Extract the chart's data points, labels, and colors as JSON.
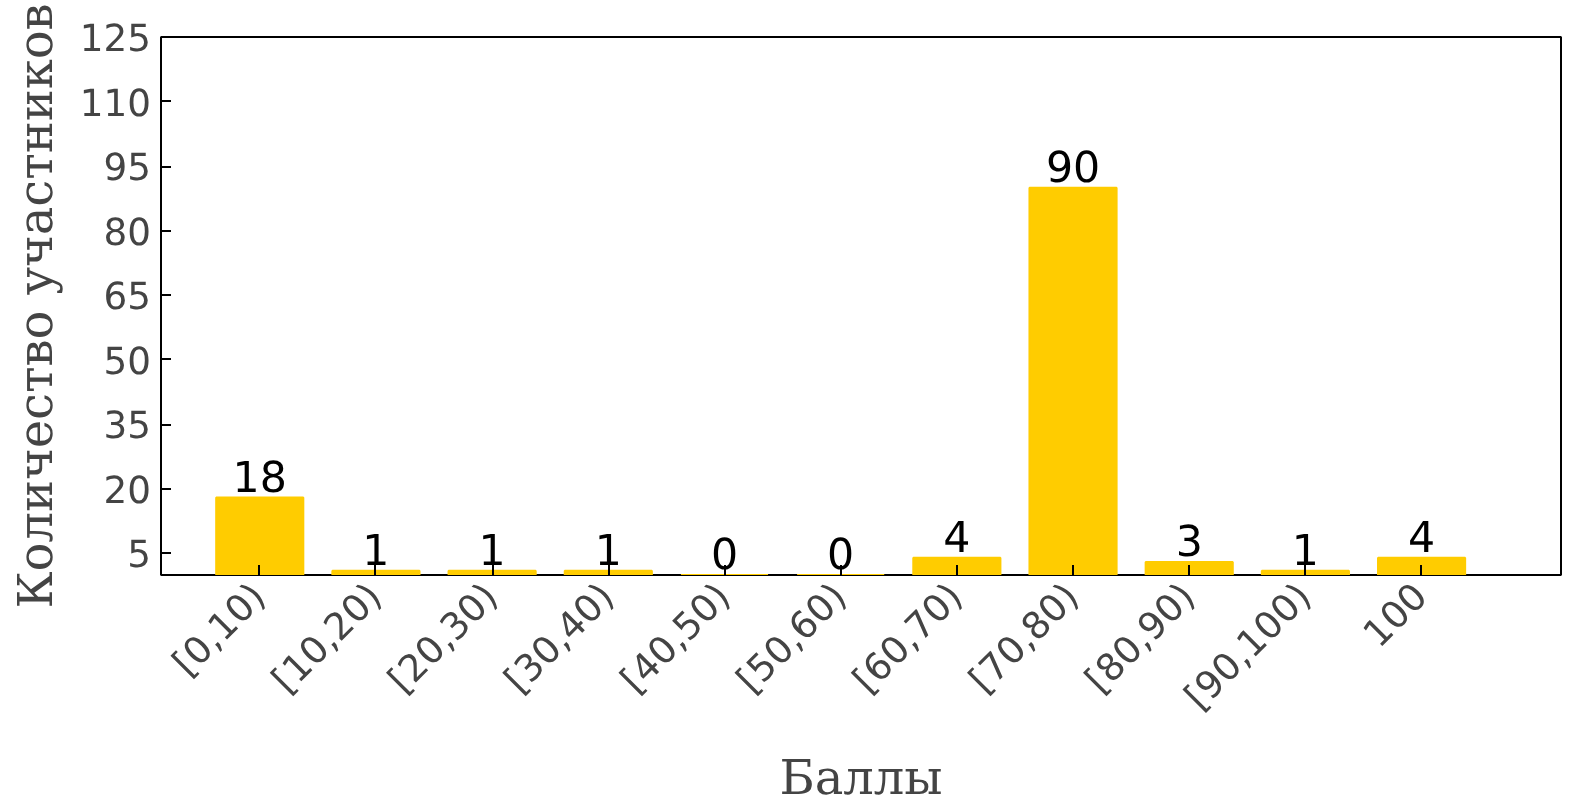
{
  "chart_data": {
    "type": "bar",
    "xlabel": "Баллы",
    "ylabel": "Количество участников",
    "categories": [
      "[0,10)",
      "[10,20)",
      "[20,30)",
      "[30,40)",
      "[40,50)",
      "[50,60)",
      "[60,70)",
      "[70,80)",
      "[80,90)",
      "[90,100)",
      "100"
    ],
    "values": [
      18,
      1,
      1,
      1,
      0,
      0,
      4,
      90,
      3,
      1,
      4
    ],
    "color": "#ffcc00",
    "ylim": [
      0,
      125
    ],
    "yticks": [
      5,
      20,
      35,
      50,
      65,
      80,
      95,
      110,
      125
    ],
    "data_labels": true,
    "grid": false
  }
}
